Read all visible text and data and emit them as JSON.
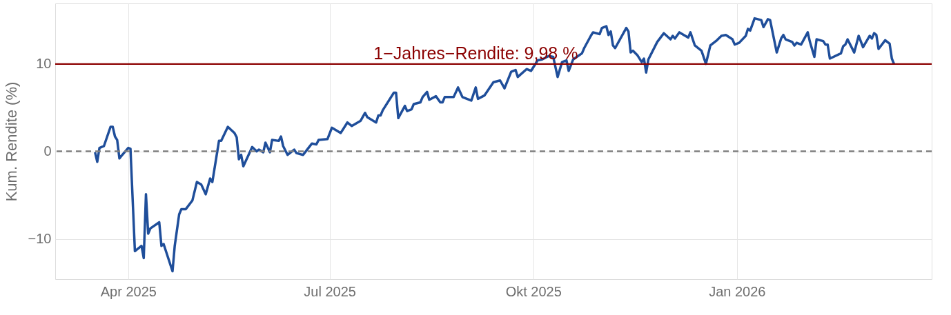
{
  "chart_data": {
    "type": "line",
    "ylabel": "Kum. Rendite (%)",
    "xlim": [
      "2025-02-27",
      "2026-03-30"
    ],
    "xticks": [
      {
        "value": "2025-04-01",
        "label": "Apr 2025"
      },
      {
        "value": "2025-07-01",
        "label": "Jul 2025"
      },
      {
        "value": "2025-10-01",
        "label": "Okt 2025"
      },
      {
        "value": "2026-01-01",
        "label": "Jan 2026"
      }
    ],
    "ylim": [
      -14.6,
      16.9
    ],
    "yticks": [
      {
        "value": -10,
        "label": "−10"
      },
      0,
      10
    ],
    "grid": true,
    "marker": "none",
    "line_style": "solid",
    "ref_lines": [
      {
        "axis": "y",
        "value": 0,
        "color": "#808080",
        "line_style": "dashed"
      },
      {
        "axis": "y",
        "value": 9.98,
        "label": "1−Jahres−Rendite: 9,98 %",
        "color": "#8b0000",
        "line_style": "solid"
      }
    ],
    "x": [
      "2025-03-17",
      "2025-03-18",
      "2025-03-19",
      "2025-03-21",
      "2025-03-24",
      "2025-03-25",
      "2025-03-26",
      "2025-03-27",
      "2025-03-28",
      "2025-03-29",
      "2025-04-01",
      "2025-04-02",
      "2025-04-04",
      "2025-04-07",
      "2025-04-08",
      "2025-04-09",
      "2025-04-10",
      "2025-04-11",
      "2025-04-15",
      "2025-04-16",
      "2025-04-17",
      "2025-04-21",
      "2025-04-22",
      "2025-04-24",
      "2025-04-25",
      "2025-04-27",
      "2025-04-30",
      "2025-05-02",
      "2025-05-04",
      "2025-05-06",
      "2025-05-08",
      "2025-05-09",
      "2025-05-12",
      "2025-05-13",
      "2025-05-16",
      "2025-05-19",
      "2025-05-20",
      "2025-05-21",
      "2025-05-22",
      "2025-05-23",
      "2025-05-27",
      "2025-05-29",
      "2025-05-30",
      "2025-06-01",
      "2025-06-02",
      "2025-06-04",
      "2025-06-05",
      "2025-06-08",
      "2025-06-09",
      "2025-06-10",
      "2025-06-12",
      "2025-06-15",
      "2025-06-16",
      "2025-06-19",
      "2025-06-23",
      "2025-06-25",
      "2025-06-26",
      "2025-06-30",
      "2025-07-02",
      "2025-07-06",
      "2025-07-09",
      "2025-07-11",
      "2025-07-15",
      "2025-07-17",
      "2025-07-18",
      "2025-07-22",
      "2025-07-23",
      "2025-07-24",
      "2025-07-25",
      "2025-07-30",
      "2025-07-31",
      "2025-08-01",
      "2025-08-04",
      "2025-08-05",
      "2025-08-07",
      "2025-08-08",
      "2025-08-11",
      "2025-08-12",
      "2025-08-14",
      "2025-08-15",
      "2025-08-18",
      "2025-08-20",
      "2025-08-21",
      "2025-08-22",
      "2025-08-26",
      "2025-08-28",
      "2025-08-30",
      "2025-09-03",
      "2025-09-05",
      "2025-09-06",
      "2025-09-09",
      "2025-09-13",
      "2025-09-16",
      "2025-09-18",
      "2025-09-21",
      "2025-09-23",
      "2025-09-24",
      "2025-09-28",
      "2025-09-30",
      "2025-10-03",
      "2025-10-05",
      "2025-10-08",
      "2025-10-10",
      "2025-10-12",
      "2025-10-14",
      "2025-10-16",
      "2025-10-17",
      "2025-10-19",
      "2025-10-23",
      "2025-10-24",
      "2025-10-27",
      "2025-10-28",
      "2025-10-31",
      "2025-11-01",
      "2025-11-03",
      "2025-11-04",
      "2025-11-05",
      "2025-11-06",
      "2025-11-07",
      "2025-11-12",
      "2025-11-13",
      "2025-11-14",
      "2025-11-15",
      "2025-11-17",
      "2025-11-19",
      "2025-11-20",
      "2025-11-21",
      "2025-11-22",
      "2025-11-26",
      "2025-11-29",
      "2025-12-02",
      "2025-12-03",
      "2025-12-04",
      "2025-12-06",
      "2025-12-10",
      "2025-12-11",
      "2025-12-13",
      "2025-12-16",
      "2025-12-18",
      "2025-12-20",
      "2025-12-23",
      "2025-12-25",
      "2025-12-27",
      "2025-12-30",
      "2025-12-31",
      "2026-01-02",
      "2026-01-05",
      "2026-01-06",
      "2026-01-07",
      "2026-01-09",
      "2026-01-12",
      "2026-01-13",
      "2026-01-15",
      "2026-01-16",
      "2026-01-19",
      "2026-01-21",
      "2026-01-22",
      "2026-01-23",
      "2026-01-26",
      "2026-01-27",
      "2026-01-28",
      "2026-01-30",
      "2026-02-02",
      "2026-02-03",
      "2026-02-05",
      "2026-02-06",
      "2026-02-09",
      "2026-02-10",
      "2026-02-11",
      "2026-02-12",
      "2026-02-17",
      "2026-02-18",
      "2026-02-19",
      "2026-02-20",
      "2026-02-23",
      "2026-02-25",
      "2026-02-27",
      "2026-03-02",
      "2026-03-03",
      "2026-03-04",
      "2026-03-05",
      "2026-03-06",
      "2026-03-09",
      "2026-03-11",
      "2026-03-12",
      "2026-03-13"
    ],
    "series": [
      {
        "color": "#1f4e9a",
        "values": [
          -0.1,
          -1.2,
          0.4,
          0.6,
          2.8,
          2.8,
          1.7,
          1.3,
          -0.8,
          -0.5,
          0.4,
          0.3,
          -11.4,
          -10.8,
          -12.2,
          -4.9,
          -9.4,
          -8.8,
          -8.1,
          -10.8,
          -10.6,
          -13.7,
          -10.8,
          -7.2,
          -6.6,
          -6.6,
          -5.6,
          -3.5,
          -3.8,
          -4.9,
          -3.1,
          -3.5,
          1.2,
          1.2,
          2.8,
          2.1,
          1.6,
          -0.9,
          -0.4,
          -1.7,
          0.5,
          0.0,
          0.2,
          -0.1,
          1.0,
          -0.1,
          1.3,
          1.2,
          1.7,
          0.6,
          -0.4,
          0.2,
          -0.2,
          -0.4,
          0.9,
          0.8,
          1.3,
          1.4,
          2.7,
          2.1,
          3.3,
          2.9,
          3.5,
          4.4,
          3.9,
          3.3,
          4.1,
          4.1,
          4.7,
          6.7,
          6.7,
          3.8,
          5.2,
          4.6,
          4.8,
          5.4,
          5.6,
          6.2,
          6.8,
          5.9,
          6.3,
          5.6,
          5.6,
          6.2,
          6.2,
          7.3,
          6.2,
          5.8,
          7.3,
          6.0,
          6.4,
          7.9,
          8.1,
          7.2,
          9.1,
          9.3,
          8.5,
          9.4,
          9.2,
          10.4,
          10.5,
          10.9,
          10.8,
          8.5,
          10.2,
          10.4,
          9.2,
          10.5,
          11.2,
          11.8,
          13.2,
          13.6,
          13.4,
          14.1,
          14.3,
          13.3,
          13.7,
          12.1,
          11.8,
          14.1,
          13.7,
          11.3,
          11.5,
          11.0,
          10.2,
          10.6,
          9.0,
          10.5,
          12.5,
          13.5,
          12.8,
          13.2,
          12.9,
          13.6,
          13.0,
          13.6,
          12.1,
          11.5,
          10.0,
          12.1,
          12.7,
          13.2,
          13.3,
          12.8,
          12.2,
          12.4,
          13.2,
          14.0,
          13.8,
          15.2,
          15.0,
          14.2,
          15.1,
          15.0,
          11.3,
          12.9,
          13.3,
          12.8,
          12.5,
          12.1,
          12.4,
          12.2,
          13.6,
          12.5,
          10.8,
          12.8,
          12.6,
          12.2,
          12.2,
          10.6,
          11.2,
          12.0,
          12.2,
          12.8,
          11.3,
          13.2,
          11.9,
          13.2,
          12.9,
          13.5,
          13.3,
          11.7,
          12.7,
          12.3,
          10.6,
          9.98
        ]
      }
    ]
  }
}
